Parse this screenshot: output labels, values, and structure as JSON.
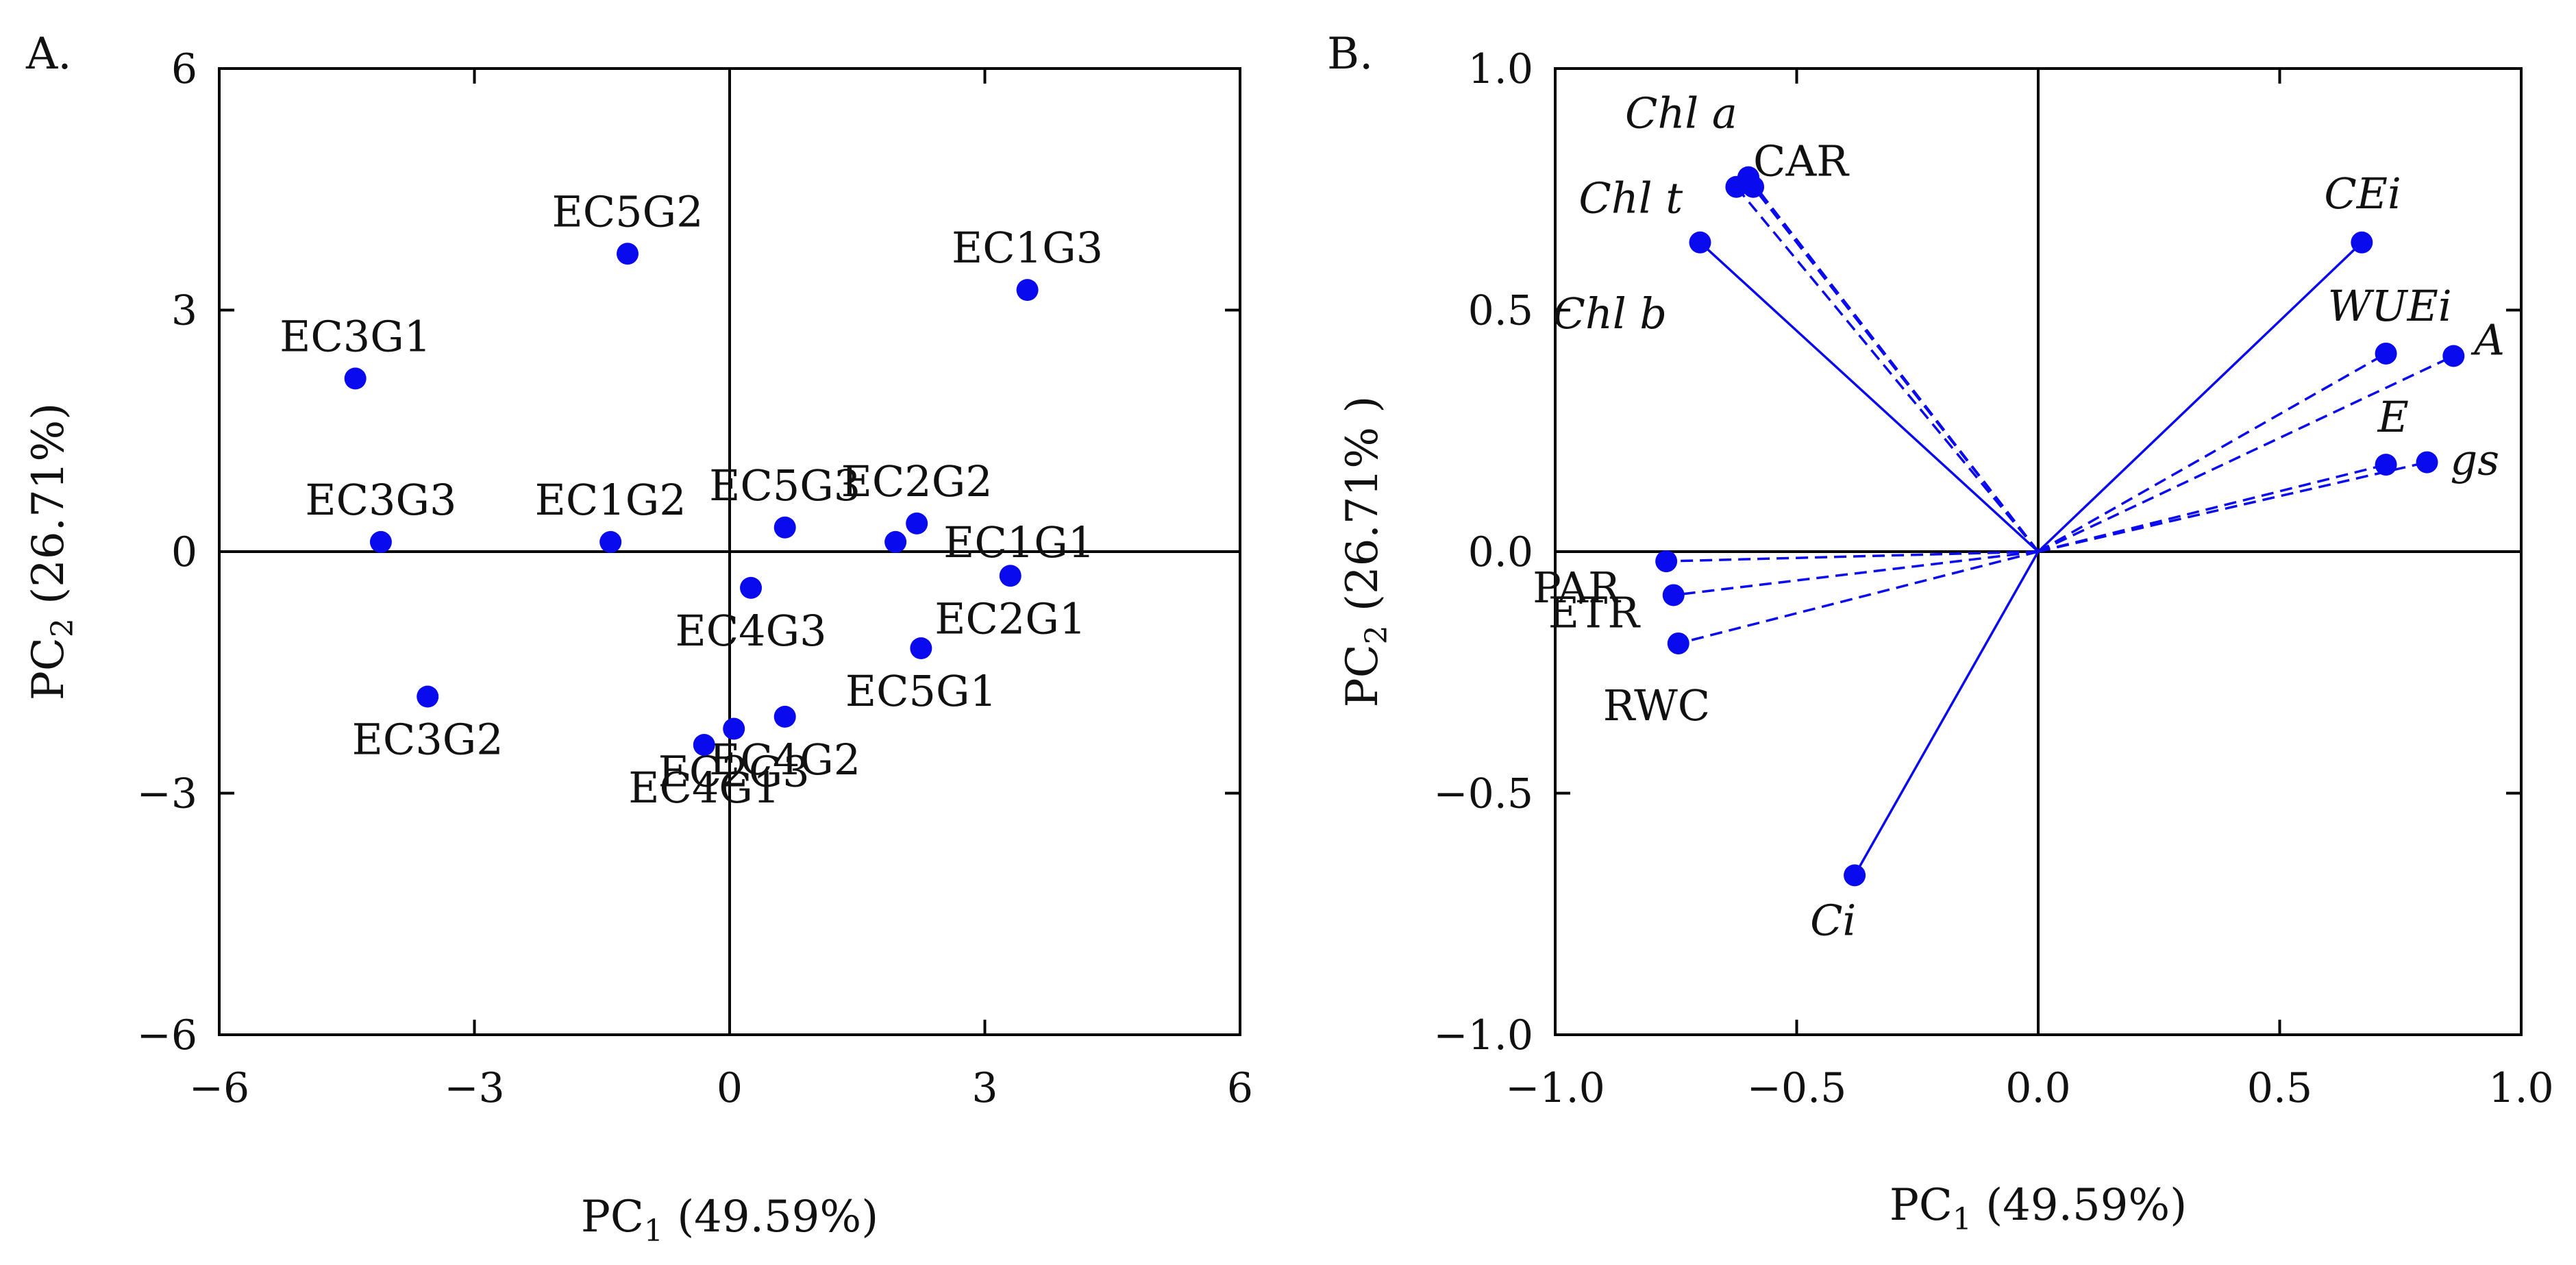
{
  "colors": {
    "marker": "#0a0aee",
    "axis": "#000000",
    "text": "#111111"
  },
  "chart_data": [
    {
      "panel_label": "A.",
      "type": "scatter",
      "xlabel": {
        "main": "PC",
        "sub": "1",
        "rest": " (49.59%)"
      },
      "ylabel": {
        "main": "PC",
        "sub": "2",
        "rest": " (26.71%)"
      },
      "xlim": [
        -6,
        6
      ],
      "ylim": [
        -6,
        6
      ],
      "xticks": [
        -6,
        -3,
        0,
        3,
        6
      ],
      "yticks": [
        -6,
        -3,
        0,
        3,
        6
      ],
      "xtick_labels": [
        "−6",
        "−3",
        "0",
        "3",
        "6"
      ],
      "ytick_labels": [
        "−6",
        "−3",
        "0",
        "3",
        "6"
      ],
      "points": [
        {
          "label": "EC5G2",
          "x": -1.2,
          "y": 3.7,
          "anchor": "above"
        },
        {
          "label": "EC1G3",
          "x": 3.5,
          "y": 3.25,
          "anchor": "above"
        },
        {
          "label": "EC3G1",
          "x": -4.4,
          "y": 2.15,
          "anchor": "above"
        },
        {
          "label": "EC3G3",
          "x": -4.1,
          "y": 0.12,
          "anchor": "above"
        },
        {
          "label": "EC1G2",
          "x": -1.4,
          "y": 0.12,
          "anchor": "above"
        },
        {
          "label": "EC5G3",
          "x": 0.65,
          "y": 0.3,
          "anchor": "above"
        },
        {
          "label": "EC2G2",
          "x": 2.2,
          "y": 0.35,
          "anchor": "above"
        },
        {
          "label": "EC1G1",
          "x": 1.95,
          "y": 0.12,
          "anchor": "right"
        },
        {
          "label": "EC2G1",
          "x": 3.3,
          "y": -0.3,
          "anchor": "below"
        },
        {
          "label": "EC4G3",
          "x": 0.25,
          "y": -0.45,
          "anchor": "below"
        },
        {
          "label": "EC5G1",
          "x": 2.25,
          "y": -1.2,
          "anchor": "below"
        },
        {
          "label": "EC3G2",
          "x": -3.55,
          "y": -1.8,
          "anchor": "below"
        },
        {
          "label": "EC4G2",
          "x": 0.65,
          "y": -2.05,
          "anchor": "below"
        },
        {
          "label": "EC2G3",
          "x": 0.05,
          "y": -2.2,
          "anchor": "below"
        },
        {
          "label": "EC4G1",
          "x": -0.3,
          "y": -2.4,
          "anchor": "below"
        }
      ]
    },
    {
      "panel_label": "B.",
      "type": "biplot",
      "xlabel": {
        "main": "PC",
        "sub": "1",
        "rest": " (49.59%)"
      },
      "ylabel": {
        "main": "PC",
        "sub": "2",
        "rest": " (26.71% )"
      },
      "xlim": [
        -1.0,
        1.0
      ],
      "ylim": [
        -1.0,
        1.0
      ],
      "xticks": [
        -1.0,
        -0.5,
        0.0,
        0.5,
        1.0
      ],
      "yticks": [
        -1.0,
        -0.5,
        0.0,
        0.5,
        1.0
      ],
      "xtick_labels": [
        "−1.0",
        "−0.5",
        "0.0",
        "0.5",
        "1.0"
      ],
      "ytick_labels": [
        "−1.0",
        "−0.5",
        "0.0",
        "0.5",
        "1.0"
      ],
      "vectors": [
        {
          "label": "Chl a",
          "italic": true,
          "x": -0.6,
          "y": 0.775,
          "style": "dashed"
        },
        {
          "label": "CAR",
          "italic": false,
          "x": -0.59,
          "y": 0.755,
          "style": "dashed"
        },
        {
          "label": "Chl t",
          "italic": true,
          "x": -0.625,
          "y": 0.755,
          "style": "dashed"
        },
        {
          "label": "Chl b",
          "italic": true,
          "x": -0.7,
          "y": 0.64,
          "style": "solid"
        },
        {
          "label": "CEi",
          "italic": true,
          "x": 0.67,
          "y": 0.64,
          "style": "solid"
        },
        {
          "label": "WUEi",
          "italic": true,
          "x": 0.72,
          "y": 0.41,
          "style": "dashed"
        },
        {
          "label": "A",
          "italic": true,
          "x": 0.86,
          "y": 0.405,
          "style": "dashed"
        },
        {
          "label": "E",
          "italic": true,
          "x": 0.72,
          "y": 0.18,
          "style": "dashed"
        },
        {
          "label": "gs",
          "italic": true,
          "x": 0.805,
          "y": 0.185,
          "style": "dashed"
        },
        {
          "label": "PAR",
          "italic": false,
          "x": -0.77,
          "y": -0.02,
          "style": "dashed"
        },
        {
          "label": "ETR",
          "italic": false,
          "x": -0.755,
          "y": -0.09,
          "style": "dashed"
        },
        {
          "label": "RWC",
          "italic": false,
          "x": -0.745,
          "y": -0.19,
          "style": "dashed"
        },
        {
          "label": "Ci",
          "italic": true,
          "x": -0.38,
          "y": -0.67,
          "style": "solid"
        }
      ]
    }
  ]
}
